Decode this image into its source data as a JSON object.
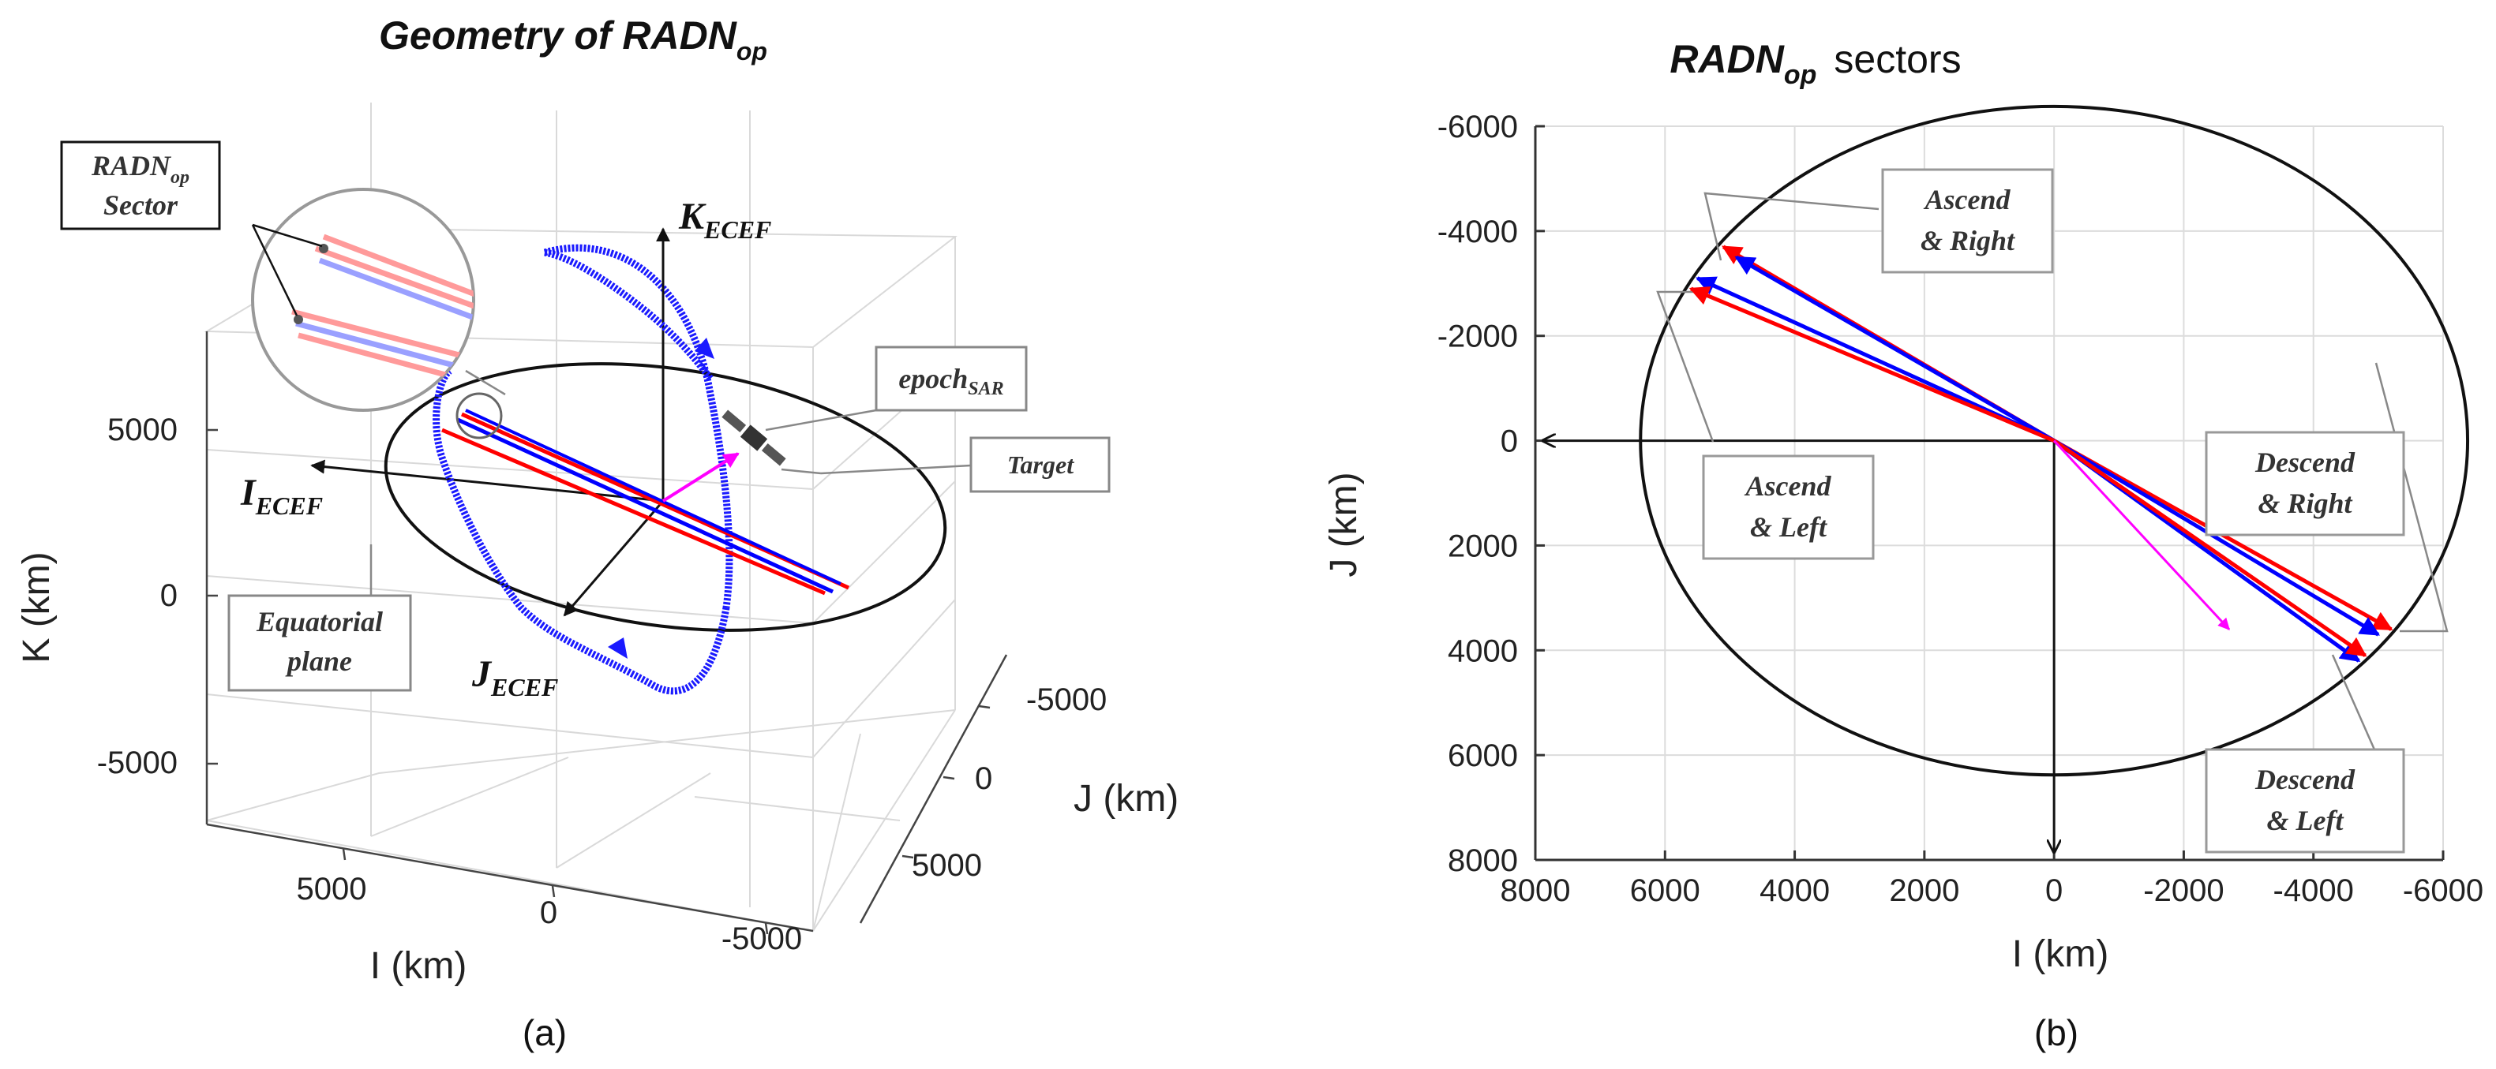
{
  "chart_data": [
    {
      "type": "line",
      "panel": "(a)",
      "title": "Geometry of RADN",
      "title_sub": "op",
      "xlabel": "I (km)",
      "ylabel": "K (km)",
      "zlabel": "J (km)",
      "k_ticks": [
        "5000",
        "0",
        "-5000"
      ],
      "i_ticks": [
        "5000",
        "0",
        "-5000"
      ],
      "j_ticks": [
        "-5000",
        "0",
        "5000"
      ],
      "axis_labels": [
        {
          "id": "k",
          "main": "K",
          "sub": "ECEF"
        },
        {
          "id": "i",
          "main": "I",
          "sub": "ECEF"
        },
        {
          "id": "j",
          "main": "J",
          "sub": "ECEF"
        }
      ],
      "callouts": {
        "sector_line1": "RADN",
        "sector_line1_sub": "op",
        "sector_line2": "Sector",
        "epoch": "epoch",
        "epoch_sub": "SAR",
        "target": "Target",
        "equatorial_line1": "Equatorial",
        "equatorial_line2": "plane"
      },
      "caption": "(a)"
    },
    {
      "type": "line",
      "panel": "(b)",
      "title": "RADN",
      "title_sub": "op",
      "title_tail": "sectors",
      "xlabel": "I (km)",
      "ylabel": "J (km)",
      "xlim": [
        8000,
        -6000
      ],
      "ylim": [
        -6000,
        8000
      ],
      "x_ticks": [
        8000,
        6000,
        4000,
        2000,
        0,
        -2000,
        -4000,
        -6000
      ],
      "y_ticks": [
        -6000,
        -4000,
        -2000,
        0,
        2000,
        4000,
        6000,
        8000
      ],
      "earth_radius": 6378,
      "series": [
        {
          "name": "Ascend & Right (red)",
          "color": "#ff0000",
          "from": [
            0,
            0
          ],
          "to": [
            5100,
            -3700
          ]
        },
        {
          "name": "Ascend & Right (blue)",
          "color": "#0000ff",
          "from": [
            0,
            0
          ],
          "to": [
            4900,
            -3500
          ]
        },
        {
          "name": "Ascend & Left (blue)",
          "color": "#0000ff",
          "from": [
            0,
            0
          ],
          "to": [
            5500,
            -3100
          ]
        },
        {
          "name": "Ascend & Left (red)",
          "color": "#ff0000",
          "from": [
            0,
            0
          ],
          "to": [
            5600,
            -2900
          ]
        },
        {
          "name": "Descend & Right (red)",
          "color": "#ff0000",
          "from": [
            0,
            0
          ],
          "to": [
            -5200,
            3600
          ]
        },
        {
          "name": "Descend & Right (blue)",
          "color": "#0000ff",
          "from": [
            0,
            0
          ],
          "to": [
            -5000,
            3700
          ]
        },
        {
          "name": "Descend & Left (blue)",
          "color": "#0000ff",
          "from": [
            0,
            0
          ],
          "to": [
            -4700,
            4200
          ]
        },
        {
          "name": "Descend & Left (red)",
          "color": "#ff0000",
          "from": [
            0,
            0
          ],
          "to": [
            -4800,
            4100
          ]
        },
        {
          "name": "Target",
          "color": "#ff00ff",
          "from": [
            0,
            0
          ],
          "to": [
            -2700,
            3600
          ]
        }
      ],
      "annotations": {
        "ascend_right": [
          "Ascend",
          "& Right"
        ],
        "ascend_left": [
          "Ascend",
          "& Left"
        ],
        "descend_right": [
          "Descend",
          "& Right"
        ],
        "descend_left": [
          "Descend",
          "& Left"
        ]
      },
      "caption": "(b)"
    }
  ],
  "colors": {
    "red": "#ff0000",
    "blue": "#0000ff",
    "magenta": "#ff00ff",
    "orbit": "#1a1aff"
  }
}
